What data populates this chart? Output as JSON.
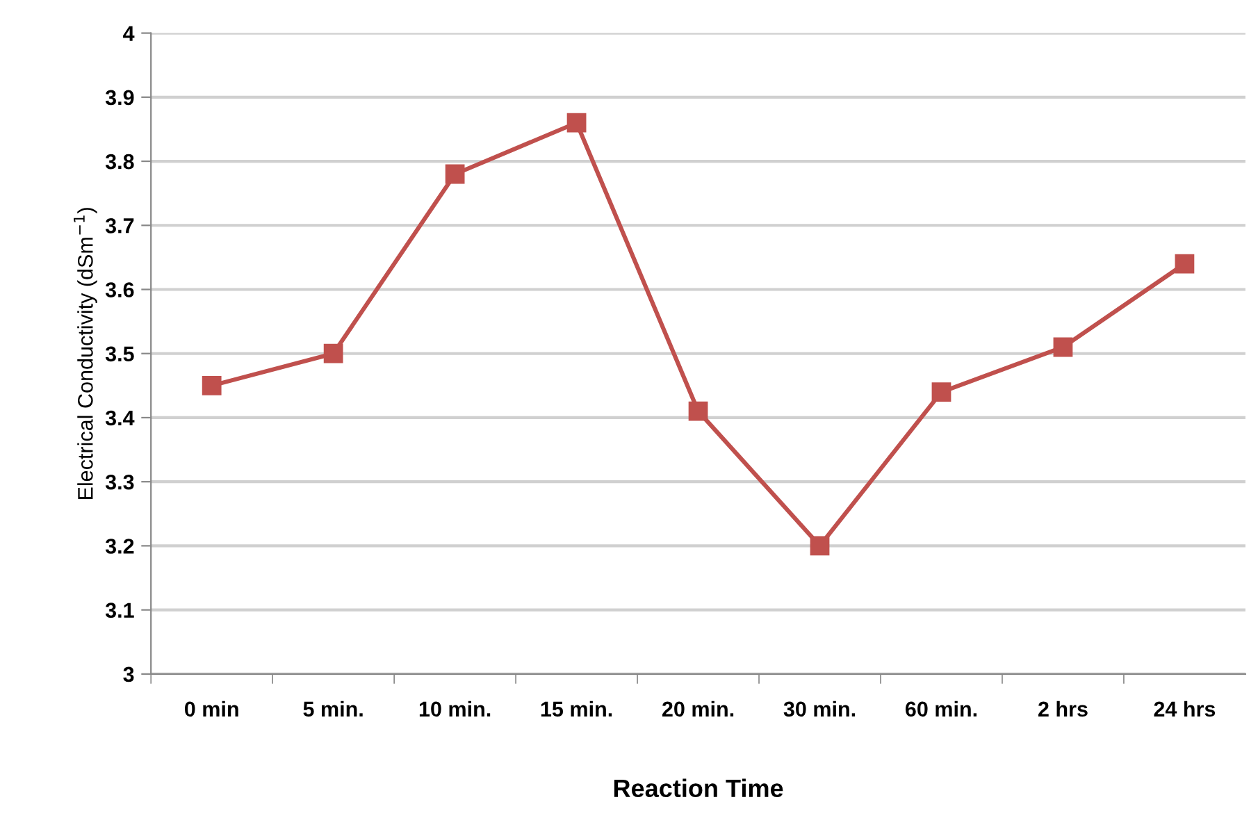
{
  "chart_data": {
    "type": "line",
    "xlabel": "Reaction Time",
    "ylabel": "Electrical Conductivity (dSm$^{−1}$)",
    "categories": [
      "0 min",
      "5 min.",
      "10 min.",
      "15 min.",
      "20 min.",
      "30 min.",
      "60 min.",
      "2 hrs",
      "24 hrs"
    ],
    "series": [
      {
        "color": "#c0504d",
        "values": [
          3.45,
          3.5,
          3.78,
          3.86,
          3.41,
          3.2,
          3.44,
          3.51,
          3.64
        ]
      }
    ],
    "ylim": [
      3,
      4
    ],
    "yticks": [
      3,
      3.1,
      3.2,
      3.3,
      3.4,
      3.5,
      3.6,
      3.7,
      3.8,
      3.9,
      4
    ],
    "grid": "y",
    "marker": "square",
    "line_style": "solid",
    "legend": false
  }
}
